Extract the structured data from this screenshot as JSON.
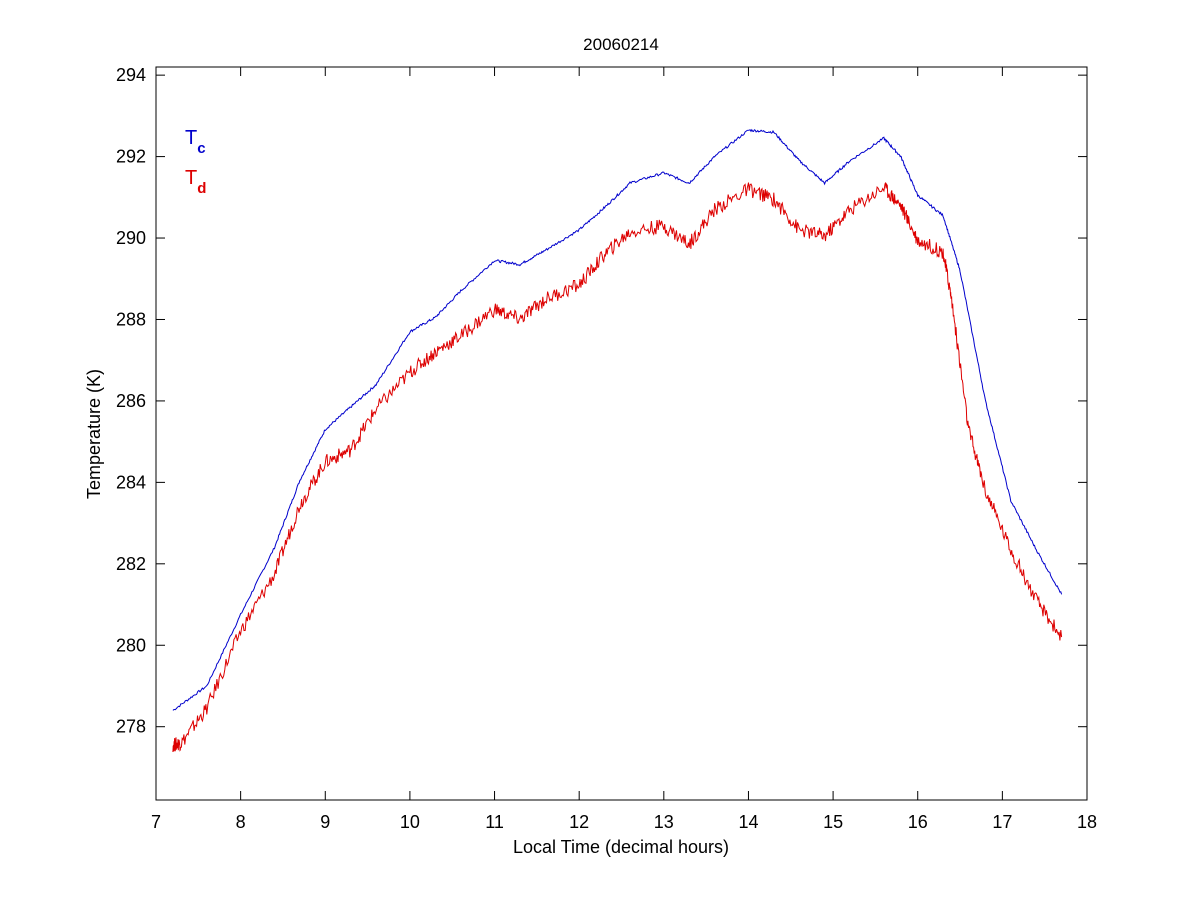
{
  "chart_data": {
    "type": "line",
    "title": "20060214",
    "xlabel": "Local Time (decimal hours)",
    "ylabel": "Temperature (K)",
    "xlim": [
      7,
      18
    ],
    "ylim": [
      276.2,
      294.2
    ],
    "xticks": [
      7,
      8,
      9,
      10,
      11,
      12,
      13,
      14,
      15,
      16,
      17,
      18
    ],
    "yticks": [
      278,
      280,
      282,
      284,
      286,
      288,
      290,
      292,
      294
    ],
    "grid": false,
    "legend_position": "top-left",
    "series": [
      {
        "name": "T",
        "subscript": "c",
        "color": "#0000cc",
        "x": [
          7.2,
          7.6,
          8.0,
          8.4,
          8.7,
          9.0,
          9.3,
          9.6,
          10.0,
          10.3,
          10.6,
          11.0,
          11.3,
          11.6,
          12.0,
          12.3,
          12.6,
          13.0,
          13.3,
          13.6,
          14.0,
          14.3,
          14.6,
          14.9,
          15.2,
          15.6,
          15.8,
          16.0,
          16.3,
          16.5,
          16.8,
          17.1,
          17.4,
          17.7
        ],
        "y": [
          278.4,
          279.0,
          280.75,
          282.4,
          284.05,
          285.3,
          285.85,
          286.4,
          287.7,
          288.05,
          288.7,
          289.45,
          289.35,
          289.7,
          290.2,
          290.75,
          291.35,
          291.6,
          291.35,
          292.0,
          292.65,
          292.6,
          291.9,
          291.35,
          291.9,
          292.45,
          292.0,
          291.05,
          290.55,
          289.2,
          286.0,
          283.55,
          282.35,
          281.25
        ]
      },
      {
        "name": "T",
        "subscript": "d",
        "color": "#dd0000",
        "x": [
          7.2,
          7.3,
          7.6,
          8.0,
          8.4,
          8.7,
          9.0,
          9.3,
          9.6,
          10.0,
          10.3,
          10.6,
          11.0,
          11.3,
          11.6,
          12.0,
          12.3,
          12.6,
          13.0,
          13.3,
          13.6,
          14.0,
          14.3,
          14.6,
          14.9,
          15.2,
          15.6,
          15.8,
          16.0,
          16.3,
          16.4,
          16.6,
          16.8,
          17.1,
          17.4,
          17.7
        ],
        "y": [
          277.55,
          277.6,
          278.45,
          280.35,
          281.75,
          283.45,
          284.5,
          284.8,
          285.8,
          286.7,
          287.2,
          287.6,
          288.25,
          288.0,
          288.5,
          288.85,
          289.6,
          290.15,
          290.3,
          289.85,
          290.7,
          291.2,
          290.95,
          290.2,
          290.05,
          290.7,
          291.25,
          290.8,
          289.95,
          289.65,
          288.5,
          285.3,
          283.8,
          282.35,
          281.1,
          280.2
        ]
      }
    ]
  }
}
